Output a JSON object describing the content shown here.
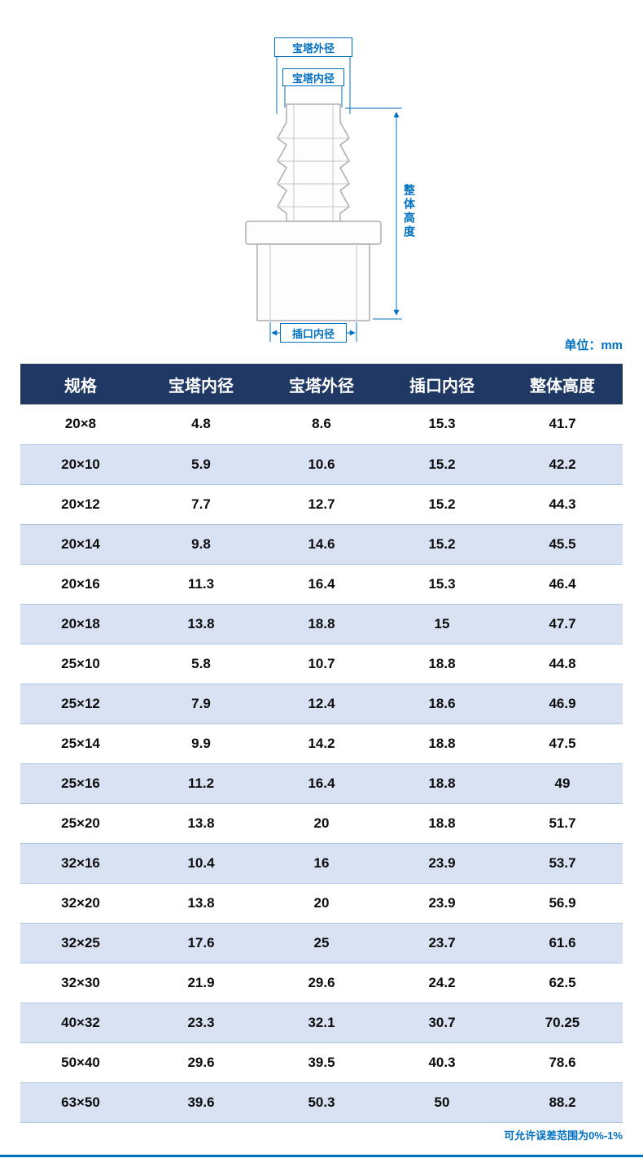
{
  "colors": {
    "accent": "#0070C0",
    "header-bg": "#1F3864",
    "row-alt": "#D9E2F3",
    "row-line": "#ADC6E5",
    "outline": "#ADADAD"
  },
  "diagram": {
    "labels": {
      "pagoda_outer_diameter": "宝塔外径",
      "pagoda_inner_diameter": "宝塔内径",
      "overall_height": "整体高度",
      "socket_inner_diameter": "插口内径"
    },
    "unit_label": "单位：mm"
  },
  "table": {
    "headers": [
      "规格",
      "宝塔内径",
      "宝塔外径",
      "插口内径",
      "整体高度"
    ],
    "rows": [
      [
        "20×8",
        "4.8",
        "8.6",
        "15.3",
        "41.7"
      ],
      [
        "20×10",
        "5.9",
        "10.6",
        "15.2",
        "42.2"
      ],
      [
        "20×12",
        "7.7",
        "12.7",
        "15.2",
        "44.3"
      ],
      [
        "20×14",
        "9.8",
        "14.6",
        "15.2",
        "45.5"
      ],
      [
        "20×16",
        "11.3",
        "16.4",
        "15.3",
        "46.4"
      ],
      [
        "20×18",
        "13.8",
        "18.8",
        "15",
        "47.7"
      ],
      [
        "25×10",
        "5.8",
        "10.7",
        "18.8",
        "44.8"
      ],
      [
        "25×12",
        "7.9",
        "12.4",
        "18.6",
        "46.9"
      ],
      [
        "25×14",
        "9.9",
        "14.2",
        "18.8",
        "47.5"
      ],
      [
        "25×16",
        "11.2",
        "16.4",
        "18.8",
        "49"
      ],
      [
        "25×20",
        "13.8",
        "20",
        "18.8",
        "51.7"
      ],
      [
        "32×16",
        "10.4",
        "16",
        "23.9",
        "53.7"
      ],
      [
        "32×20",
        "13.8",
        "20",
        "23.9",
        "56.9"
      ],
      [
        "32×25",
        "17.6",
        "25",
        "23.7",
        "61.6"
      ],
      [
        "32×30",
        "21.9",
        "29.6",
        "24.2",
        "62.5"
      ],
      [
        "40×32",
        "23.3",
        "32.1",
        "30.7",
        "70.25"
      ],
      [
        "50×40",
        "29.6",
        "39.5",
        "40.3",
        "78.6"
      ],
      [
        "63×50",
        "39.6",
        "50.3",
        "50",
        "88.2"
      ]
    ]
  },
  "footer_note": "可允许误差范围为0%-1%"
}
